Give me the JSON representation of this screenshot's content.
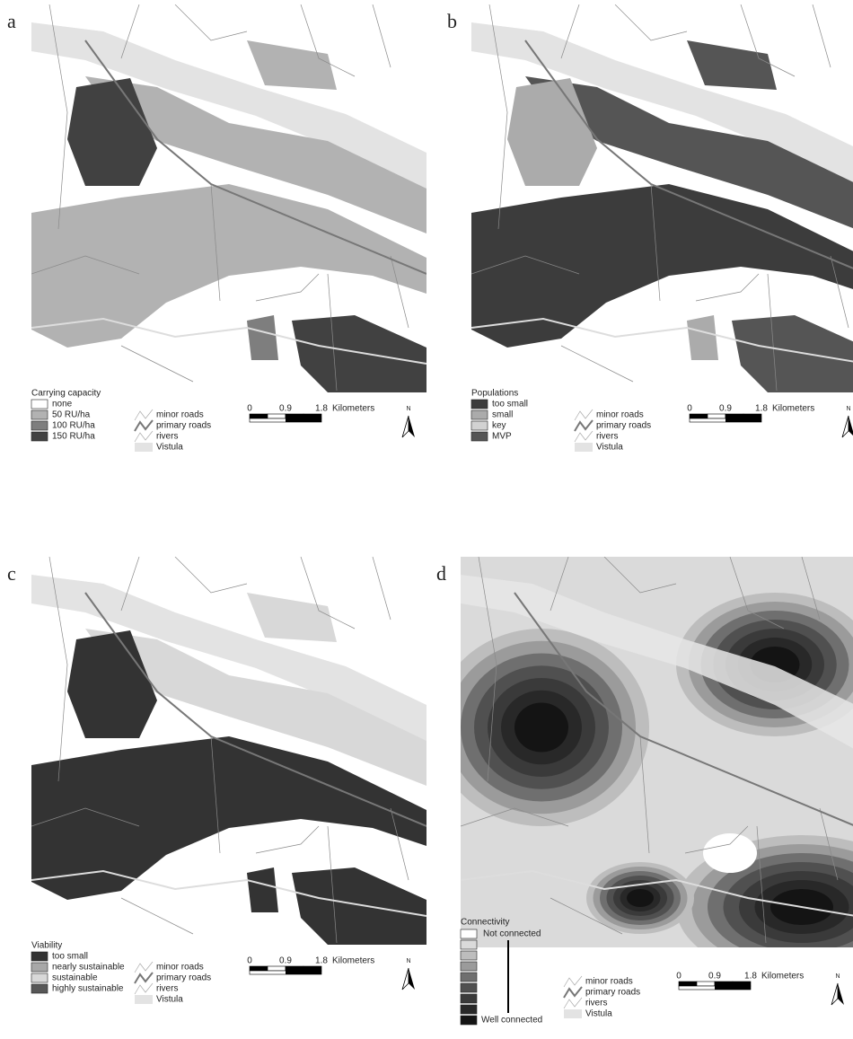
{
  "panels": [
    {
      "label": "a",
      "legend_title": "Carrying capacity",
      "legend_items": [
        {
          "label": "none",
          "color": "#ffffff"
        },
        {
          "label": "50 RU/ha",
          "color": "#b2b2b2"
        },
        {
          "label": "100 RU/ha",
          "color": "#7e7e7e"
        },
        {
          "label": "150 RU/ha",
          "color": "#414141"
        }
      ]
    },
    {
      "label": "b",
      "legend_title": "Populations",
      "legend_items": [
        {
          "label": "too small",
          "color": "#3c3c3c"
        },
        {
          "label": "small",
          "color": "#ababab"
        },
        {
          "label": "key",
          "color": "#d2d2d2"
        },
        {
          "label": "MVP",
          "color": "#555555"
        }
      ]
    },
    {
      "label": "c",
      "legend_title": "Viability",
      "legend_items": [
        {
          "label": "too small",
          "color": "#333333"
        },
        {
          "label": "nearly sustainable",
          "color": "#a8a8a8"
        },
        {
          "label": "sustainable",
          "color": "#d8d8d8"
        },
        {
          "label": "highly sustainable",
          "color": "#575757"
        }
      ]
    },
    {
      "label": "d",
      "legend_title": "Connectivity",
      "legend_top_label": "Not connected",
      "legend_bottom_label": "Well connected",
      "legend_colors": [
        "#ffffff",
        "#dadada",
        "#bdbdbd",
        "#9b9b9b",
        "#6f6f6f",
        "#505050",
        "#3a3a3a",
        "#282828",
        "#141414"
      ]
    }
  ],
  "road_legend": [
    "minor roads",
    "primary roads",
    "rivers",
    "Vistula"
  ],
  "scale": {
    "ticks": [
      "0",
      "0.9",
      "1.8"
    ],
    "unit": "Kilometers"
  },
  "north": "N"
}
